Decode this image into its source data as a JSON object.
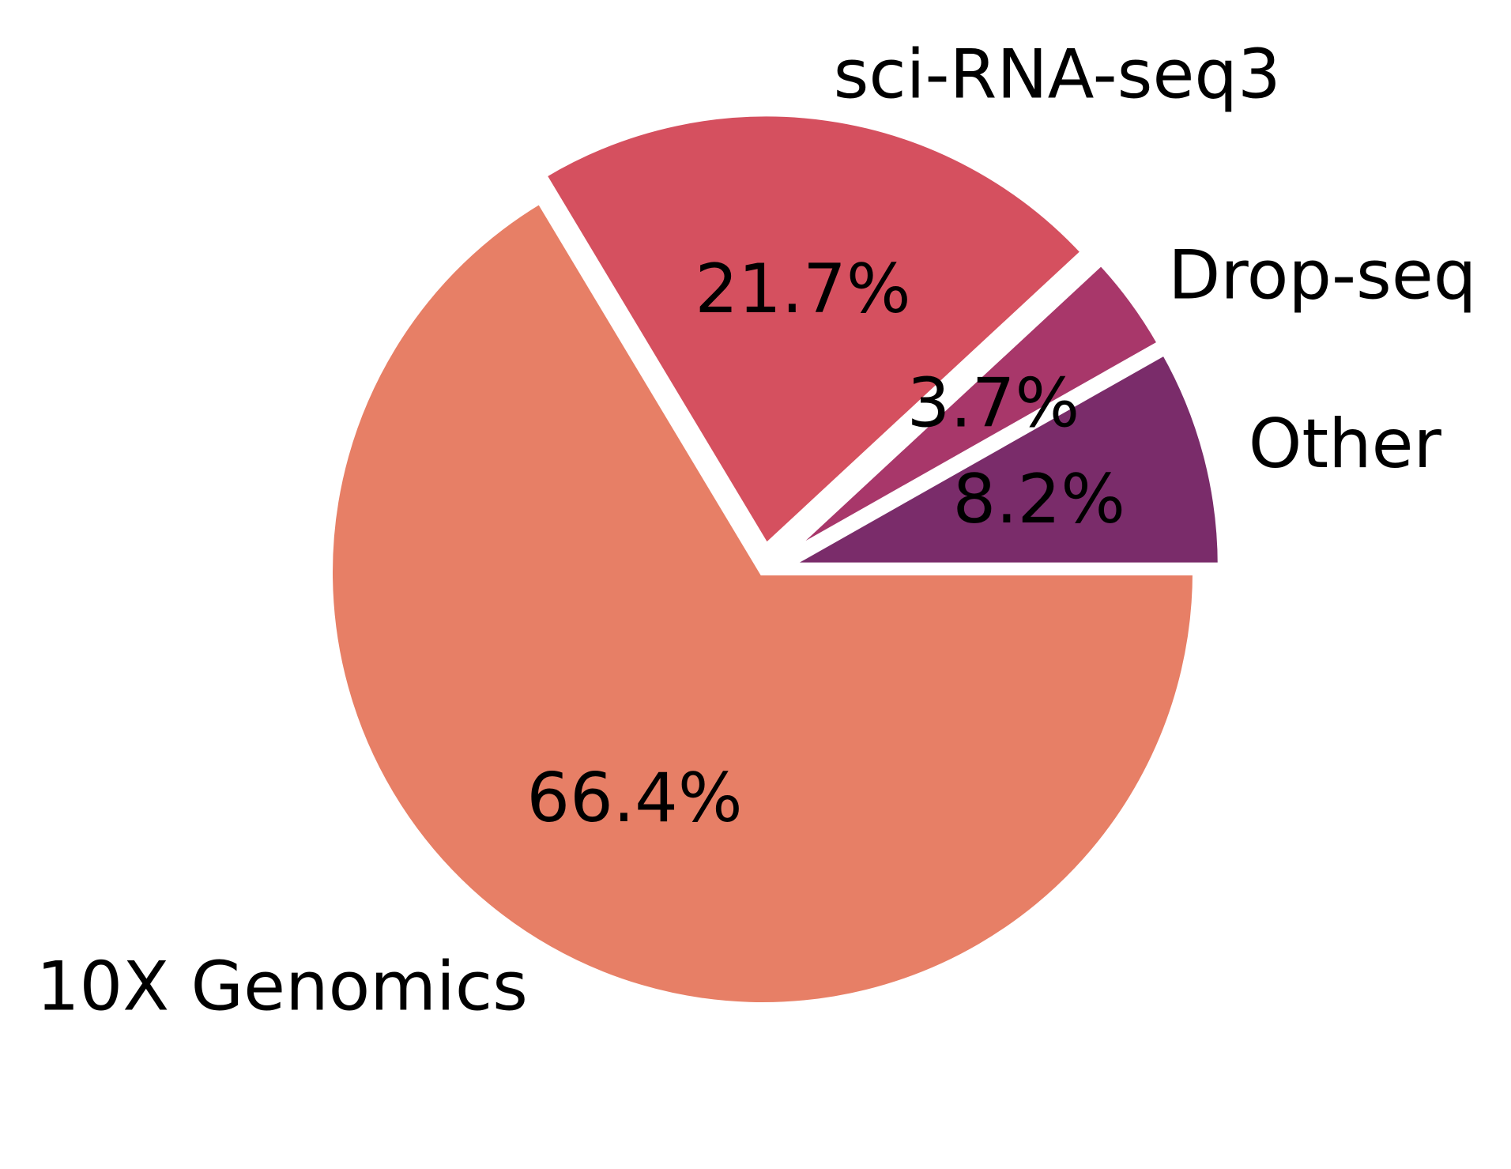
{
  "chart_data": {
    "type": "pie",
    "title": "",
    "slices": [
      {
        "label": "10X Genomics",
        "value": 66.4,
        "pct_label": "66.4%",
        "color": "#e77f66",
        "explode": 0.0
      },
      {
        "label": "sci-RNA-seq3",
        "value": 21.7,
        "pct_label": "21.7%",
        "color": "#d5505f",
        "explode": 0.08
      },
      {
        "label": "Drop-seq",
        "value": 3.7,
        "pct_label": "3.7%",
        "color": "#a8376a",
        "explode": 0.08
      },
      {
        "label": "Other",
        "value": 8.2,
        "pct_label": "8.2%",
        "color": "#7a2c6a",
        "explode": 0.08
      }
    ],
    "start_angle": 0,
    "direction": "clockwise",
    "legend": "none"
  }
}
